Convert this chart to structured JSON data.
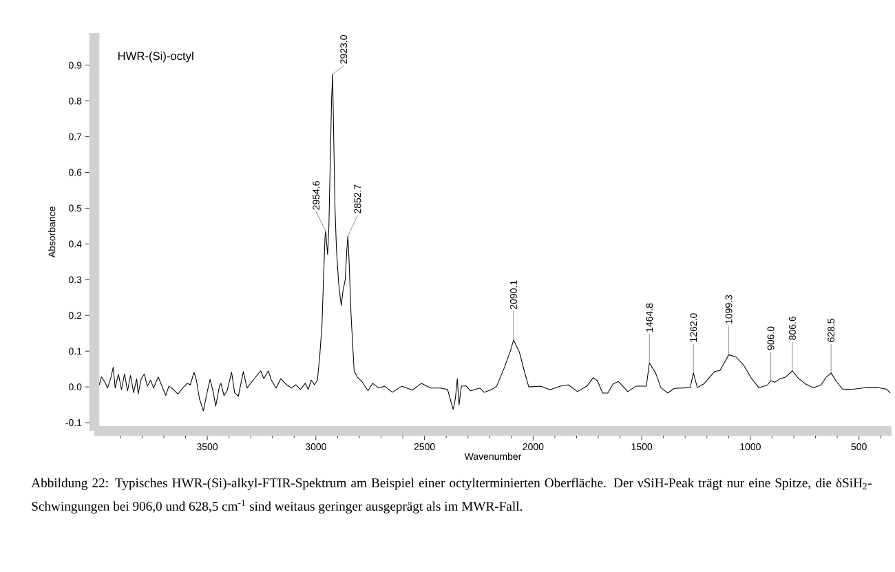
{
  "chart_data": {
    "type": "line",
    "xlabel": "Wavenumber",
    "ylabel": "Absorbance",
    "xlim": [
      4020,
      350
    ],
    "ylim": [
      -0.123,
      0.99
    ],
    "xticks": [
      3500,
      3000,
      2500,
      2000,
      1500,
      1000,
      500,
      {
        "value": 3900,
        "label": null
      },
      {
        "value": 3800,
        "label": null
      },
      {
        "value": 3700,
        "label": null
      },
      {
        "value": 3600,
        "label": null
      },
      {
        "value": 3400,
        "label": null
      },
      {
        "value": 3300,
        "label": null
      },
      {
        "value": 3200,
        "label": null
      },
      {
        "value": 3100,
        "label": null
      },
      {
        "value": 2900,
        "label": null
      },
      {
        "value": 2800,
        "label": null
      },
      {
        "value": 2700,
        "label": null
      },
      {
        "value": 2600,
        "label": null
      },
      {
        "value": 2400,
        "label": null
      },
      {
        "value": 2300,
        "label": null
      },
      {
        "value": 2200,
        "label": null
      },
      {
        "value": 2100,
        "label": null
      },
      {
        "value": 1900,
        "label": null
      },
      {
        "value": 1800,
        "label": null
      },
      {
        "value": 1700,
        "label": null
      },
      {
        "value": 1600,
        "label": null
      },
      {
        "value": 1400,
        "label": null
      },
      {
        "value": 1300,
        "label": null
      },
      {
        "value": 1200,
        "label": null
      },
      {
        "value": 1100,
        "label": null
      },
      {
        "value": 900,
        "label": null
      },
      {
        "value": 800,
        "label": null
      },
      {
        "value": 700,
        "label": null
      },
      {
        "value": 600,
        "label": null
      },
      {
        "value": 400,
        "label": null
      }
    ],
    "yticks": [
      {
        "value": -0.1,
        "label": "-0.1"
      },
      {
        "value": 0,
        "label": "0.0"
      },
      {
        "value": 0.1,
        "label": "0.1"
      },
      {
        "value": 0.2,
        "label": "0.2"
      },
      {
        "value": 0.3,
        "label": "0.3"
      },
      {
        "value": 0.4,
        "label": "0.4"
      },
      {
        "value": 0.5,
        "label": "0.5"
      },
      {
        "value": 0.6,
        "label": "0.6"
      },
      {
        "value": 0.7,
        "label": "0.7"
      },
      {
        "value": 0.8,
        "label": "0.8"
      },
      {
        "value": 0.9,
        "label": "0.9"
      }
    ],
    "x": [
      3997,
      3987,
      3973,
      3959,
      3945,
      3933,
      3924,
      3909,
      3895,
      3881,
      3867,
      3853,
      3839,
      3825,
      3818,
      3804,
      3790,
      3776,
      3761,
      3747,
      3726,
      3705,
      3691,
      3677,
      3656,
      3635,
      3613,
      3592,
      3578,
      3561,
      3550,
      3536,
      3518,
      3501,
      3487,
      3472,
      3461,
      3444,
      3437,
      3423,
      3409,
      3388,
      3374,
      3357,
      3334,
      3317,
      3289,
      3254,
      3240,
      3219,
      3205,
      3183,
      3162,
      3134,
      3113,
      3092,
      3071,
      3049,
      3035,
      3021,
      3007,
      2993,
      2982,
      2972,
      2965,
      2958,
      2954.6,
      2950,
      2946,
      2940,
      2935,
      2928,
      2923.0,
      2918,
      2912,
      2905,
      2895,
      2888,
      2883,
      2875,
      2865,
      2858,
      2852.7,
      2847,
      2838,
      2824,
      2810,
      2788,
      2760,
      2739,
      2711,
      2683,
      2648,
      2605,
      2556,
      2514,
      2471,
      2429,
      2394,
      2368,
      2358,
      2349,
      2341,
      2330,
      2309,
      2288,
      2246,
      2225,
      2190,
      2168,
      2133,
      2105,
      2090.1,
      2063,
      2041,
      2020,
      1964,
      1923,
      1875,
      1838,
      1796,
      1753,
      1723,
      1704,
      1680,
      1656,
      1631,
      1607,
      1564,
      1528,
      1479,
      1464.8,
      1436,
      1412,
      1381,
      1350,
      1277,
      1262.0,
      1244,
      1213,
      1165,
      1140,
      1099.3,
      1067,
      1031,
      995,
      961,
      922,
      906.0,
      887,
      863,
      839,
      806.6,
      779,
      748,
      711,
      675,
      650,
      628.5,
      606,
      576,
      533,
      472,
      411,
      374,
      356
    ],
    "series": [
      {
        "name": "HWR-(Si)-octyl",
        "color": "#000000",
        "values": [
          0.006,
          0.028,
          0.015,
          -0.003,
          0.023,
          0.055,
          -0.003,
          0.036,
          -0.007,
          0.036,
          -0.011,
          0.032,
          -0.016,
          0.023,
          -0.02,
          0.023,
          0.036,
          0.002,
          0.019,
          -0.003,
          0.028,
          -0.003,
          -0.024,
          0.002,
          -0.007,
          -0.02,
          -0.003,
          0.01,
          0.006,
          0.041,
          0.019,
          -0.033,
          -0.067,
          -0.016,
          0.021,
          -0.016,
          -0.054,
          0.002,
          0.01,
          -0.024,
          -0.011,
          0.041,
          -0.016,
          -0.026,
          0.043,
          -0.003,
          0.019,
          0.045,
          0.023,
          0.045,
          0.019,
          -0.003,
          0.023,
          0.006,
          -0.003,
          0.006,
          -0.007,
          0.01,
          -0.007,
          0.019,
          0.006,
          0.019,
          0.088,
          0.174,
          0.3,
          0.42,
          0.436,
          0.4,
          0.37,
          0.45,
          0.6,
          0.8,
          0.875,
          0.7,
          0.5,
          0.38,
          0.29,
          0.25,
          0.228,
          0.27,
          0.3,
          0.38,
          0.422,
          0.35,
          0.2,
          0.045,
          0.028,
          0.015,
          -0.011,
          0.01,
          -0.003,
          0.002,
          -0.015,
          0.002,
          -0.009,
          0.01,
          -0.003,
          -0.003,
          -0.007,
          -0.063,
          -0.033,
          0.023,
          -0.05,
          0.002,
          0.003,
          -0.011,
          -0.003,
          -0.015,
          -0.007,
          0.002,
          0.053,
          0.1,
          0.131,
          0.097,
          0.045,
          0.0,
          0.002,
          -0.008,
          0.002,
          0.006,
          -0.013,
          0.002,
          0.026,
          0.017,
          -0.017,
          -0.017,
          0.009,
          0.015,
          -0.013,
          0.002,
          0.002,
          0.067,
          0.039,
          -0.002,
          -0.017,
          -0.004,
          -0.002,
          0.039,
          -0.002,
          0.009,
          0.043,
          0.046,
          0.09,
          0.084,
          0.061,
          0.024,
          -0.002,
          0.005,
          0.017,
          0.013,
          0.023,
          0.027,
          0.045,
          0.024,
          0.009,
          -0.002,
          0.005,
          0.028,
          0.039,
          0.017,
          -0.006,
          -0.007,
          -0.002,
          -0.002,
          -0.006,
          -0.017
        ]
      }
    ],
    "annotations": [
      {
        "text": "2954.6",
        "x": 2954.6,
        "y": 0.436
      },
      {
        "text": "2923.0",
        "x": 2923.0,
        "y": 0.875
      },
      {
        "text": "2852.7",
        "x": 2852.7,
        "y": 0.422
      },
      {
        "text": "2090.1",
        "x": 2090.1,
        "y": 0.131
      },
      {
        "text": "1464.8",
        "x": 1464.8,
        "y": 0.067
      },
      {
        "text": "1262.0",
        "x": 1262.0,
        "y": 0.039
      },
      {
        "text": "1099.3",
        "x": 1099.3,
        "y": 0.09
      },
      {
        "text": "906.0",
        "x": 906.0,
        "y": 0.017
      },
      {
        "text": "806.6",
        "x": 806.6,
        "y": 0.045
      },
      {
        "text": "628.5",
        "x": 628.5,
        "y": 0.039
      },
      "Abbildung 22: Typisches HWR-(Si)-alkyl-FTIR-Spektrum am Beispiel einer octylterminierten Oberfläche. Der νSiH-Peak trägt nur eine Spitze, die δSiH$_{2}$-Schwingungen bei 906,0 und 628,5 cm$^{-1}$ sind weitaus geringer ausgeprägt als im MWR-Fall."
    ]
  }
}
